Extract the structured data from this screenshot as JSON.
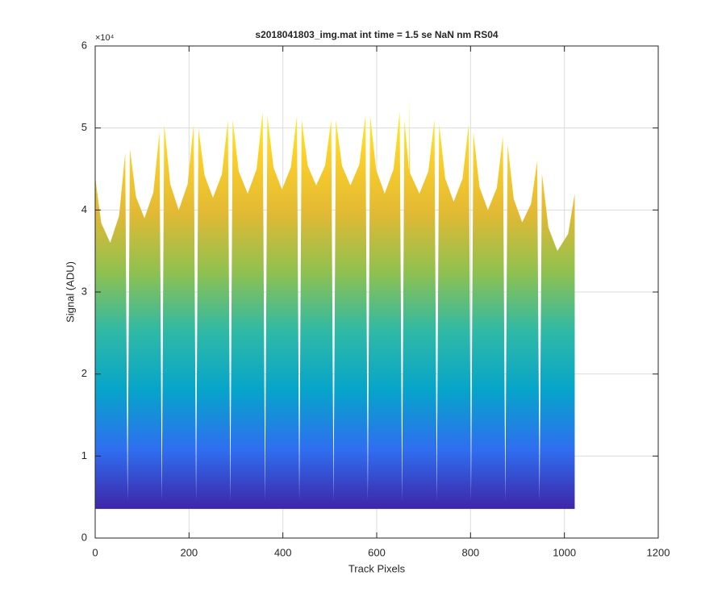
{
  "chart_data": {
    "type": "area",
    "title": "s2018041803_img.mat int time = 1.5 se  NaN nm RS04",
    "x_label": "Track Pixels",
    "y_label": "Signal (ADU)",
    "y_exponent": "×10⁴",
    "x": [
      0,
      13,
      32,
      51,
      64,
      69,
      74,
      87,
      105,
      124,
      137,
      142,
      147,
      160,
      178,
      197,
      210,
      215,
      220,
      233,
      251,
      270,
      283,
      288,
      293,
      306,
      325,
      344,
      357,
      362,
      367,
      380,
      398,
      417,
      430,
      435,
      440,
      453,
      471,
      490,
      503,
      508,
      513,
      526,
      544,
      563,
      576,
      581,
      586,
      599,
      617,
      636,
      649,
      654,
      659,
      669,
      670,
      671,
      691,
      710,
      723,
      728,
      733,
      746,
      764,
      783,
      796,
      801,
      806,
      819,
      837,
      856,
      869,
      874,
      879,
      892,
      910,
      929,
      942,
      947,
      952,
      966,
      985,
      1008,
      1022
    ],
    "values": [
      44000,
      38400,
      36000,
      39300,
      47000,
      4500,
      47500,
      41600,
      39000,
      42150,
      49500,
      4500,
      50500,
      43150,
      40000,
      43150,
      50500,
      4500,
      50000,
      44250,
      41500,
      44350,
      51000,
      4500,
      51000,
      44700,
      42000,
      45000,
      52000,
      4500,
      51500,
      45200,
      42500,
      45200,
      51500,
      4500,
      51000,
      45400,
      43000,
      45400,
      51000,
      4500,
      51000,
      45400,
      43000,
      45550,
      51500,
      4500,
      51500,
      44850,
      42000,
      45000,
      52000,
      4500,
      51000,
      44700,
      54000,
      44500,
      42000,
      44700,
      51000,
      4500,
      50500,
      43850,
      41000,
      43850,
      50500,
      4500,
      49500,
      42800,
      40000,
      42700,
      49000,
      4500,
      48000,
      41350,
      38500,
      40750,
      46000,
      4500,
      44500,
      37850,
      35000,
      37100,
      42000
    ],
    "baseline": 3600,
    "colormap": [
      "#3e26a8",
      "#2f6ef0",
      "#06a4ca",
      "#2fb9a5",
      "#8fc14f",
      "#e2b934",
      "#fcd02a",
      "#f9fb15"
    ],
    "xlim": [
      0,
      1200
    ],
    "xticks": [
      0,
      200,
      400,
      600,
      800,
      1000,
      1200
    ],
    "ylim": [
      0,
      60000
    ],
    "yticks": [
      {
        "value": 0,
        "label": "0"
      },
      {
        "value": 10000,
        "label": "1"
      },
      {
        "value": 20000,
        "label": "2"
      },
      {
        "value": 30000,
        "label": "3"
      },
      {
        "value": 40000,
        "label": "4"
      },
      {
        "value": 50000,
        "label": "5"
      },
      {
        "value": 60000,
        "label": "6"
      }
    ],
    "grid": true
  }
}
